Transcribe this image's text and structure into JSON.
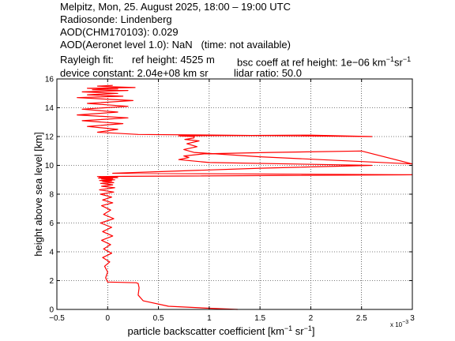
{
  "header": {
    "line1": "Melpitz, Mon, 25. August 2025, 18:00 – 19:00 UTC",
    "line2": "Radiosonde: Lindenberg",
    "line3": "AOD(CHM170103): 0.029",
    "line4": "AOD(Aeronet level 1.0): NaN   (time: not available)",
    "rayleigh_label": "Rayleigh fit:",
    "ref_height": "ref height: 4525 m",
    "bsc_prefix": "bsc coeff at ref height: 1e−06 km",
    "device_constant": "device constant: 2.04e+08 km sr",
    "lidar_ratio": "lidar ratio: 50.0"
  },
  "units": {
    "inv": "−1"
  },
  "chart_data": {
    "type": "line",
    "xlabel_prefix": "particle backscatter coefficient [km",
    "xlabel_mid": " sr",
    "xlabel_suffix": "]",
    "ylabel": "height above sea level [km]",
    "x_exponent_label": "x 10",
    "x_exponent_power": "−3",
    "xlim": [
      -0.5,
      3
    ],
    "ylim": [
      0,
      16
    ],
    "x_ticks": [
      "−0.5",
      "0",
      "0.5",
      "1",
      "1.5",
      "2",
      "2.5",
      "3"
    ],
    "y_ticks": [
      "0",
      "2",
      "4",
      "6",
      "8",
      "10",
      "12",
      "14",
      "16"
    ],
    "grid": true,
    "color": "#ff0000",
    "series": [
      {
        "x": [
          1.28,
          1.0,
          0.6,
          0.35,
          0.3,
          0.31,
          0.3,
          0.28,
          0.0,
          -0.02,
          0.0,
          -0.03,
          0.02,
          -0.05,
          0.04,
          -0.04,
          0.03,
          -0.06,
          0.05,
          -0.05,
          0.04,
          -0.07,
          0.06,
          -0.04,
          0.03,
          -0.06,
          0.05,
          -0.05,
          0.04,
          -0.07,
          0.06,
          -0.08,
          0.07,
          -0.06,
          0.05,
          -0.07,
          0.06,
          -0.05,
          0.04,
          -0.08,
          0.07,
          -0.06,
          0.05,
          -0.09,
          0.1,
          -0.08,
          0.09,
          -0.1,
          0.15,
          3.0,
          0.05,
          1.5,
          2.6,
          1.0,
          0.7,
          0.8,
          0.75,
          0.95,
          1.6,
          2.5,
          3.0,
          1.5,
          0.85,
          0.75,
          0.88,
          0.78,
          0.9,
          0.76,
          0.85,
          0.85,
          0.7,
          2.0,
          2.6,
          0.3,
          -0.1,
          0.1,
          -0.2,
          0.15,
          -0.25,
          0.2,
          -0.3,
          0.1,
          -0.25,
          0.2,
          -0.2,
          0.25,
          -0.3,
          0.15,
          -0.2,
          0.1,
          -0.25,
          0.2,
          -0.15,
          0.1,
          -0.2,
          0.27,
          0.05,
          -0.1,
          0.05
        ],
        "y": [
          0.0,
          0.08,
          0.22,
          0.6,
          1.0,
          1.5,
          1.8,
          1.85,
          1.9,
          2.2,
          2.6,
          3.0,
          3.3,
          3.6,
          3.9,
          4.2,
          4.5,
          4.8,
          5.1,
          5.4,
          5.7,
          6.0,
          6.3,
          6.6,
          6.9,
          7.2,
          7.4,
          7.6,
          7.8,
          8.0,
          8.15,
          8.3,
          8.45,
          8.55,
          8.65,
          8.75,
          8.8,
          8.88,
          8.92,
          8.95,
          9.0,
          9.05,
          9.08,
          9.12,
          9.15,
          9.18,
          9.2,
          9.22,
          9.24,
          9.35,
          9.45,
          9.8,
          10.0,
          10.2,
          10.4,
          10.55,
          10.65,
          10.8,
          10.9,
          11.0,
          10.1,
          10.6,
          10.9,
          11.1,
          11.3,
          11.5,
          11.7,
          11.8,
          11.9,
          12.0,
          12.05,
          12.1,
          12.0,
          12.15,
          12.3,
          12.5,
          12.7,
          12.9,
          13.1,
          13.3,
          13.5,
          13.7,
          13.9,
          14.1,
          14.3,
          14.5,
          14.7,
          14.8,
          14.9,
          15.0,
          15.1,
          15.2,
          15.25,
          15.3,
          15.35,
          15.4,
          15.45,
          15.5,
          15.55
        ]
      }
    ]
  }
}
